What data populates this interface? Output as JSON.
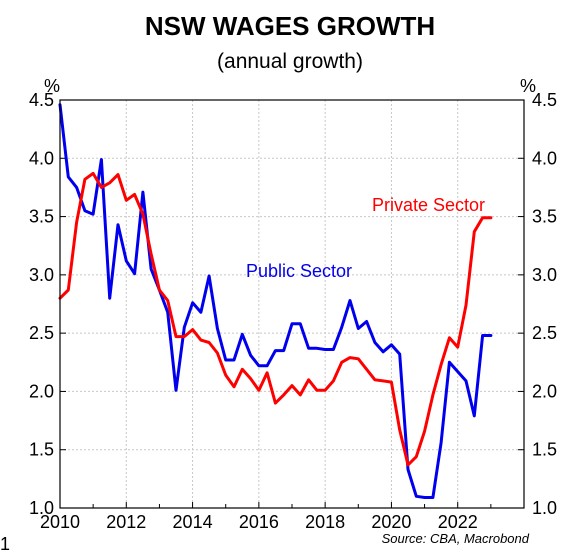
{
  "chart_data": {
    "type": "line",
    "title": "NSW WAGES GROWTH",
    "subtitle": "(annual growth)",
    "left_unit": "%",
    "right_unit": "%",
    "ylim": [
      1.0,
      4.5
    ],
    "xlim": [
      2010,
      2024
    ],
    "y_ticks": [
      1.0,
      1.5,
      2.0,
      2.5,
      3.0,
      3.5,
      4.0,
      4.5
    ],
    "y_tick_labels": [
      "1.0",
      "1.5",
      "2.0",
      "2.5",
      "3.0",
      "3.5",
      "4.0",
      "4.5"
    ],
    "x_ticks": [
      2010,
      2012,
      2014,
      2016,
      2018,
      2020,
      2022
    ],
    "x_tick_labels": [
      "2010",
      "2012",
      "2014",
      "2016",
      "2018",
      "2020",
      "2022"
    ],
    "grid": true,
    "source": "Source: CBA, Macrobond",
    "corner_label": "1",
    "series": [
      {
        "name": "Public Sector",
        "color": "#0000ee",
        "x": [
          2010.0,
          2010.25,
          2010.5,
          2010.75,
          2011.0,
          2011.25,
          2011.5,
          2011.75,
          2012.0,
          2012.25,
          2012.5,
          2012.75,
          2013.0,
          2013.25,
          2013.5,
          2013.75,
          2014.0,
          2014.25,
          2014.5,
          2014.75,
          2015.0,
          2015.25,
          2015.5,
          2015.75,
          2016.0,
          2016.25,
          2016.5,
          2016.75,
          2017.0,
          2017.25,
          2017.5,
          2017.75,
          2018.0,
          2018.25,
          2018.5,
          2018.75,
          2019.0,
          2019.25,
          2019.5,
          2019.75,
          2020.0,
          2020.25,
          2020.5,
          2020.75,
          2021.0,
          2021.25,
          2021.5,
          2021.75,
          2022.0,
          2022.25,
          2022.5,
          2022.75,
          2023.0
        ],
        "values": [
          4.46,
          3.84,
          3.75,
          3.55,
          3.52,
          3.99,
          2.8,
          3.43,
          3.12,
          3.01,
          3.71,
          3.05,
          2.87,
          2.68,
          2.01,
          2.55,
          2.76,
          2.68,
          2.99,
          2.54,
          2.27,
          2.27,
          2.49,
          2.31,
          2.22,
          2.22,
          2.35,
          2.35,
          2.58,
          2.58,
          2.37,
          2.37,
          2.36,
          2.36,
          2.55,
          2.78,
          2.54,
          2.6,
          2.42,
          2.34,
          2.4,
          2.32,
          1.33,
          1.1,
          1.09,
          1.09,
          1.56,
          2.25,
          2.17,
          2.09,
          1.79,
          2.48,
          2.48
        ]
      },
      {
        "name": "Private Sector",
        "color": "#ff0000",
        "x": [
          2010.0,
          2010.25,
          2010.5,
          2010.75,
          2011.0,
          2011.25,
          2011.5,
          2011.75,
          2012.0,
          2012.25,
          2012.5,
          2012.75,
          2013.0,
          2013.25,
          2013.5,
          2013.75,
          2014.0,
          2014.25,
          2014.5,
          2014.75,
          2015.0,
          2015.25,
          2015.5,
          2015.75,
          2016.0,
          2016.25,
          2016.5,
          2016.75,
          2017.0,
          2017.25,
          2017.5,
          2017.75,
          2018.0,
          2018.25,
          2018.5,
          2018.75,
          2019.0,
          2019.25,
          2019.5,
          2019.75,
          2020.0,
          2020.25,
          2020.5,
          2020.75,
          2021.0,
          2021.25,
          2021.5,
          2021.75,
          2022.0,
          2022.25,
          2022.5,
          2022.75,
          2023.0
        ],
        "values": [
          2.8,
          2.87,
          3.45,
          3.82,
          3.87,
          3.75,
          3.79,
          3.86,
          3.64,
          3.69,
          3.52,
          3.18,
          2.87,
          2.78,
          2.47,
          2.47,
          2.53,
          2.44,
          2.42,
          2.33,
          2.14,
          2.04,
          2.19,
          2.11,
          2.01,
          2.16,
          1.9,
          1.97,
          2.05,
          1.97,
          2.1,
          2.01,
          2.01,
          2.09,
          2.25,
          2.29,
          2.28,
          2.19,
          2.1,
          2.09,
          2.08,
          1.67,
          1.37,
          1.44,
          1.66,
          1.97,
          2.23,
          2.46,
          2.38,
          2.74,
          3.37,
          3.49,
          3.49
        ]
      }
    ]
  }
}
